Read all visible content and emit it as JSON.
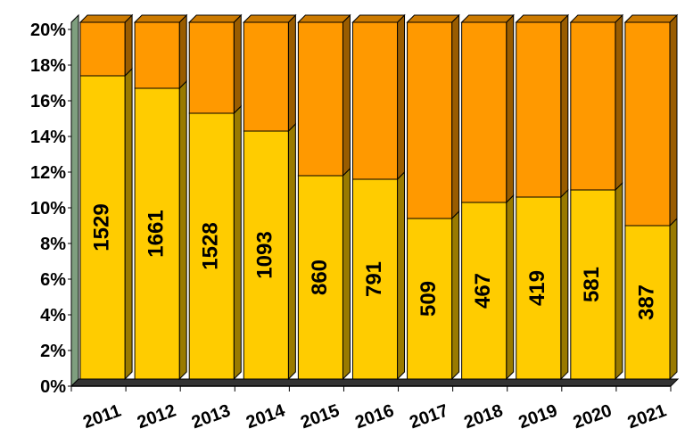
{
  "chart_data": {
    "type": "stacked_bar_3d",
    "categories": [
      "2011",
      "2012",
      "2013",
      "2014",
      "2015",
      "2016",
      "2017",
      "2018",
      "2019",
      "2020",
      "2021"
    ],
    "series": [
      {
        "color": "#ffcc00",
        "values": [
          17.0,
          16.3,
          14.9,
          13.9,
          11.4,
          11.2,
          9.0,
          9.9,
          10.2,
          10.6,
          8.6
        ],
        "data_labels": [
          1529,
          1661,
          1528,
          1093,
          860,
          791,
          509,
          467,
          419,
          581,
          387
        ]
      },
      {
        "color": "#ff9900",
        "values": [
          3.0,
          3.7,
          5.1,
          6.1,
          8.6,
          8.8,
          11.0,
          10.1,
          9.8,
          9.4,
          11.4
        ]
      }
    ],
    "ylim": [
      0,
      20
    ],
    "yticks": [
      {
        "value": 0,
        "label": "0%"
      },
      {
        "value": 2,
        "label": "2%"
      },
      {
        "value": 4,
        "label": "4%"
      },
      {
        "value": 6,
        "label": "6%"
      },
      {
        "value": 8,
        "label": "8%"
      },
      {
        "value": 10,
        "label": "10%"
      },
      {
        "value": 12,
        "label": "12%"
      },
      {
        "value": 14,
        "label": "14%"
      },
      {
        "value": 16,
        "label": "16%"
      },
      {
        "value": 18,
        "label": "18%"
      },
      {
        "value": 20,
        "label": "20%"
      }
    ]
  }
}
